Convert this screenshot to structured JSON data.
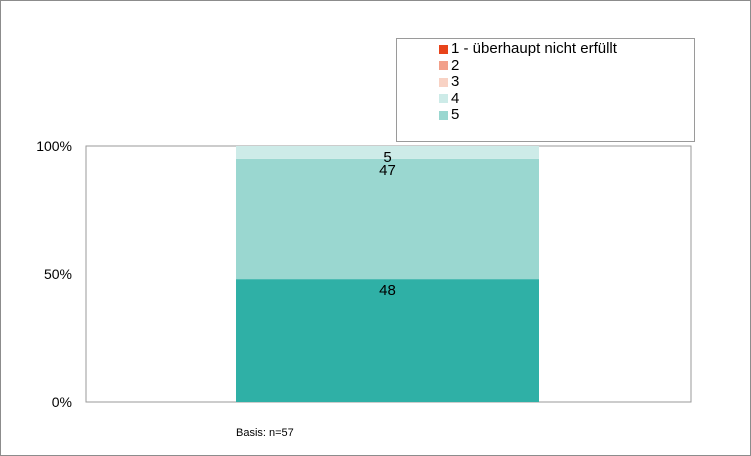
{
  "chart_data": {
    "type": "bar",
    "stacked": true,
    "categories": [
      ""
    ],
    "series": [
      {
        "name": "1 - überhaupt nicht erfüllt",
        "values": [
          0
        ],
        "color": "#e8431a"
      },
      {
        "name": "2",
        "values": [
          0
        ],
        "color": "#f2a08a"
      },
      {
        "name": "3",
        "values": [
          0
        ],
        "color": "#f8d2c4"
      },
      {
        "name": "4",
        "values": [
          5
        ],
        "color": "#cdebe8"
      },
      {
        "name": "5",
        "values": [
          47
        ],
        "color": "#9ad7d0"
      },
      {
        "name": "",
        "values": [
          48
        ],
        "color": "#2fb0a6"
      }
    ],
    "y_ticks": [
      "0%",
      "50%",
      "100%"
    ],
    "ylim": [
      0,
      100
    ],
    "legend_position": "top-right",
    "grid": false,
    "footnote": "Basis: n=57"
  }
}
